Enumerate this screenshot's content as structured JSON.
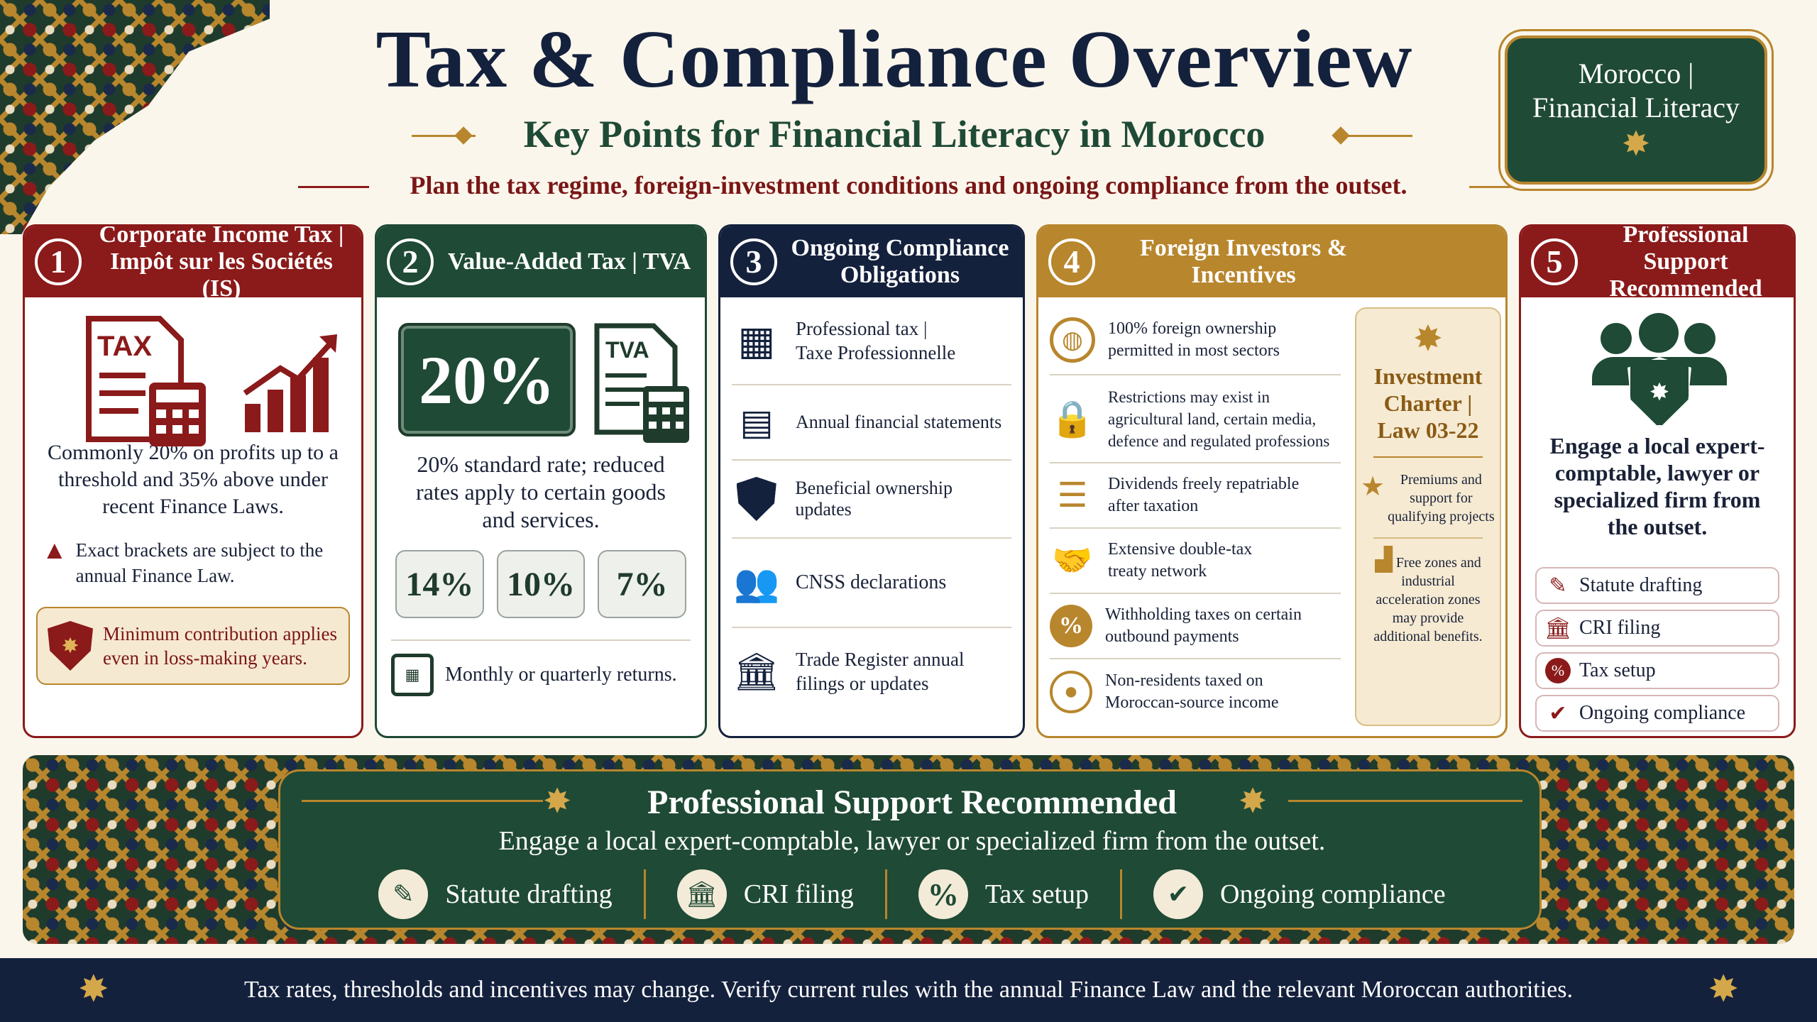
{
  "header": {
    "title": "Tax & Compliance Overview",
    "subtitle": "Key Points for Financial Literacy in Morocco",
    "intro": "Plan the tax regime, foreign-investment conditions and ongoing compliance from the outset.",
    "badge_line1": "Morocco |",
    "badge_line2": "Financial Literacy"
  },
  "cards": [
    {
      "number": "1",
      "title_line1": "Corporate Income Tax |",
      "title_line2": "Impôt sur les Sociétés (IS)",
      "icon_label": "TAX",
      "body": "Commonly 20% on profits up to a threshold and 35% above under recent Finance Laws.",
      "warning": "Exact brackets are subject to the annual Finance Law.",
      "note": "Minimum contribution applies even in loss-making years."
    },
    {
      "number": "2",
      "title": "Value-Added Tax | TVA",
      "rate": "20%",
      "icon_label": "TVA",
      "body": "20% standard rate; reduced rates apply to certain goods and services.",
      "reduced_rates": [
        "14%",
        "10%",
        "7%"
      ],
      "returns": "Monthly or quarterly returns."
    },
    {
      "number": "3",
      "title_line1": "Ongoing Compliance",
      "title_line2": "Obligations",
      "items": [
        {
          "icon": "calendar-icon",
          "line1": "Professional tax |",
          "line2": "Taxe Professionnelle"
        },
        {
          "icon": "report-icon",
          "line1": "Annual financial statements",
          "line2": ""
        },
        {
          "icon": "shield-person-icon",
          "line1": "Beneficial ownership updates",
          "line2": ""
        },
        {
          "icon": "people-icon",
          "line1": "CNSS declarations",
          "line2": ""
        },
        {
          "icon": "building-icon",
          "line1": "Trade Register annual",
          "line2": "filings or updates"
        }
      ]
    },
    {
      "number": "4",
      "title_line1": "Foreign Investors &",
      "title_line2": "Incentives",
      "items": [
        {
          "icon": "globe-icon",
          "line1": "100% foreign ownership",
          "line2": "permitted in most sectors",
          "line3": ""
        },
        {
          "icon": "lock-icon",
          "line1": "Restrictions may exist in",
          "line2": "agricultural land, certain media,",
          "line3": "defence and regulated professions"
        },
        {
          "icon": "coins-icon",
          "line1": "Dividends freely repatriable",
          "line2": "after taxation",
          "line3": ""
        },
        {
          "icon": "handshake-icon",
          "line1": "Extensive double-tax",
          "line2": "treaty network",
          "line3": ""
        },
        {
          "icon": "percent-icon",
          "line1": "Withholding taxes on certain",
          "line2": "outbound payments",
          "line3": ""
        },
        {
          "icon": "person-icon",
          "line1": "Non-residents taxed on",
          "line2": "Moroccan-source income",
          "line3": ""
        }
      ],
      "charter": {
        "line1": "Investment",
        "line2": "Charter |",
        "line3": "Law 03-22",
        "premiums_line1": "Premiums and",
        "premiums_line2": "support for",
        "premiums_line3": "qualifying projects",
        "zones_line1": "Free zones and",
        "zones_line2": "industrial",
        "zones_line3": "acceleration zones",
        "zones_line4": "may provide",
        "zones_line5": "additional benefits."
      }
    },
    {
      "number": "5",
      "title_line1": "Professional Support",
      "title_line2": "Recommended",
      "body": "Engage a local expert-comptable, lawyer or specialized firm from the outset.",
      "items": [
        "Statute drafting",
        "CRI filing",
        "Tax setup",
        "Ongoing compliance"
      ]
    }
  ],
  "band": {
    "title": "Professional Support Recommended",
    "subtitle": "Engage a local expert-comptable, lawyer or specialized firm from the outset.",
    "items": [
      "Statute drafting",
      "CRI filing",
      "Tax setup",
      "Ongoing compliance"
    ]
  },
  "footer": "Tax rates, thresholds and incentives may change. Verify current rules with the annual Finance Law and the relevant Moroccan authorities.",
  "colors": {
    "burgundy": "#8b1a1a",
    "green": "#1f4a35",
    "navy": "#14213d",
    "gold": "#b8862d",
    "cream": "#fbf6ec"
  }
}
